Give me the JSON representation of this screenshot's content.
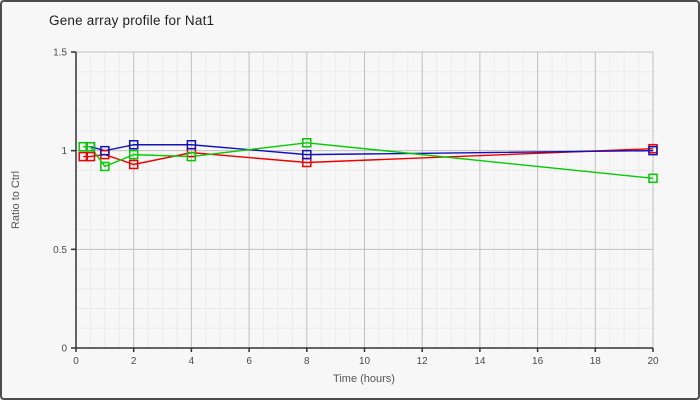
{
  "window": {
    "title": "Gene array profile for Nat1"
  },
  "chart_data": {
    "type": "line",
    "title": "Gene array profile for Nat1",
    "xlabel": "Time (hours)",
    "ylabel": "Ratio to Ctrl",
    "xlim": [
      0,
      20
    ],
    "ylim": [
      0,
      1.5
    ],
    "xticks": [
      0,
      2,
      4,
      6,
      8,
      10,
      12,
      14,
      16,
      18,
      20
    ],
    "yticks": [
      0,
      0.5,
      1,
      1.5
    ],
    "x_minor_step": 0.5,
    "y_minor_step": 0.1,
    "grid": true,
    "legend_position": "none",
    "marker": "open-square",
    "series": [
      {
        "name": "series-red",
        "color": "#ee0000",
        "x": [
          0.25,
          0.5,
          1,
          2,
          4,
          8,
          20
        ],
        "y": [
          0.97,
          0.97,
          0.98,
          0.93,
          0.99,
          0.94,
          1.01
        ]
      },
      {
        "name": "series-blue",
        "color": "#1111bb",
        "x": [
          0.5,
          1,
          2,
          4,
          8,
          20
        ],
        "y": [
          1.02,
          1.0,
          1.03,
          1.03,
          0.98,
          1.0
        ]
      },
      {
        "name": "series-green",
        "color": "#00cc00",
        "x": [
          0.25,
          0.5,
          1,
          2,
          4,
          8,
          20
        ],
        "y": [
          1.02,
          1.02,
          0.92,
          0.98,
          0.97,
          1.04,
          0.86
        ]
      }
    ]
  },
  "colors": {
    "background": "#f7f7f7",
    "frame_border": "#4d4d4d",
    "grid_minor": "#ebebeb",
    "grid_major": "#c0c0c0",
    "axis": "#333333",
    "tick_text": "#4a4a4a",
    "title_text": "#222222",
    "axis_label_text": "#555555"
  }
}
